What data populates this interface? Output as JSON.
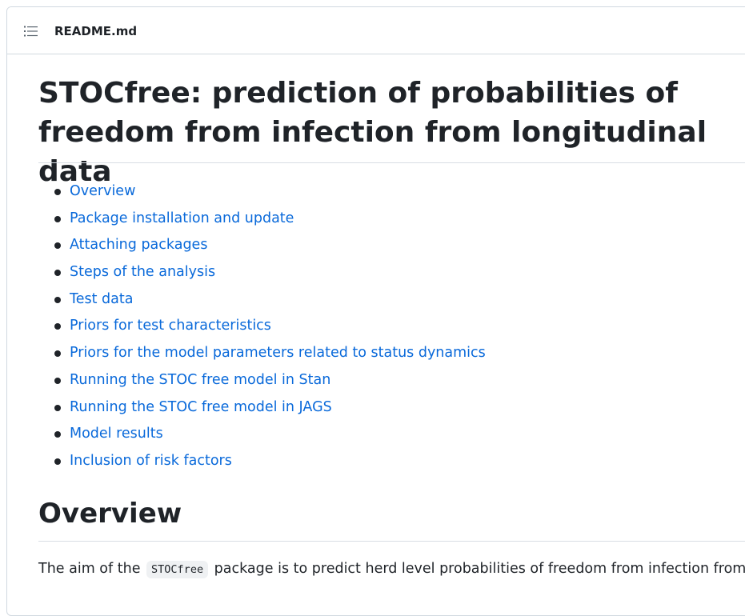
{
  "header": {
    "file_name": "README.md",
    "toc_icon": "list-unordered-icon"
  },
  "readme": {
    "title": "STOCfree: prediction of probabilities of freedom from infection from longitudinal data",
    "toc": [
      "Overview",
      "Package installation and update",
      "Attaching packages",
      "Steps of the analysis",
      "Test data",
      "Priors for test characteristics",
      "Priors for the model parameters related to status dynamics",
      "Running the STOC free model in Stan",
      "Running the STOC free model in JAGS",
      "Model results",
      "Inclusion of risk factors"
    ],
    "overview": {
      "heading": "Overview",
      "text_before": "The aim of the",
      "code": "STOCfree",
      "text_after": "package is to predict herd level probabilities of freedom from infection from"
    }
  },
  "colors": {
    "link": "#0969da",
    "text": "#1f2328",
    "border": "#d1d9e0"
  }
}
